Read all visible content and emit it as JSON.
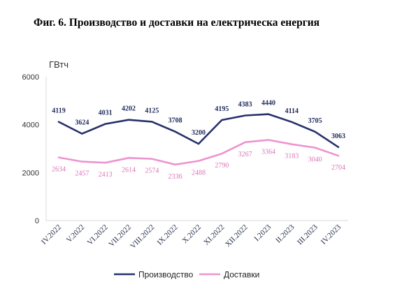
{
  "title": "Фиг. 6. Производство и доставки на електрическа енергия",
  "chart_data": {
    "type": "line",
    "ylabel": "ГВтч",
    "xlabel": "",
    "ylim": [
      0,
      6000
    ],
    "yticks": [
      "0",
      "2000",
      "4000",
      "6000"
    ],
    "grid": false,
    "legend_position": "bottom",
    "categories": [
      "IV.2022",
      "V.2022",
      "VI.2022",
      "VII.2022",
      "VIII.2022",
      "IX.2022",
      "X.2022",
      "XI.2022",
      "XII.2022",
      "I.2023",
      "II.2023",
      "III.2023",
      "IV.2023"
    ],
    "series": [
      {
        "name": "Производство",
        "color": "#26306b",
        "values": [
          4119,
          3624,
          4031,
          4202,
          4125,
          3708,
          3200,
          4195,
          4383,
          4440,
          4114,
          3705,
          3063
        ]
      },
      {
        "name": "Доставки",
        "color": "#ee93cf",
        "values": [
          2634,
          2457,
          2413,
          2614,
          2574,
          2336,
          2488,
          2790,
          3267,
          3364,
          3183,
          3040,
          2704
        ]
      }
    ]
  }
}
